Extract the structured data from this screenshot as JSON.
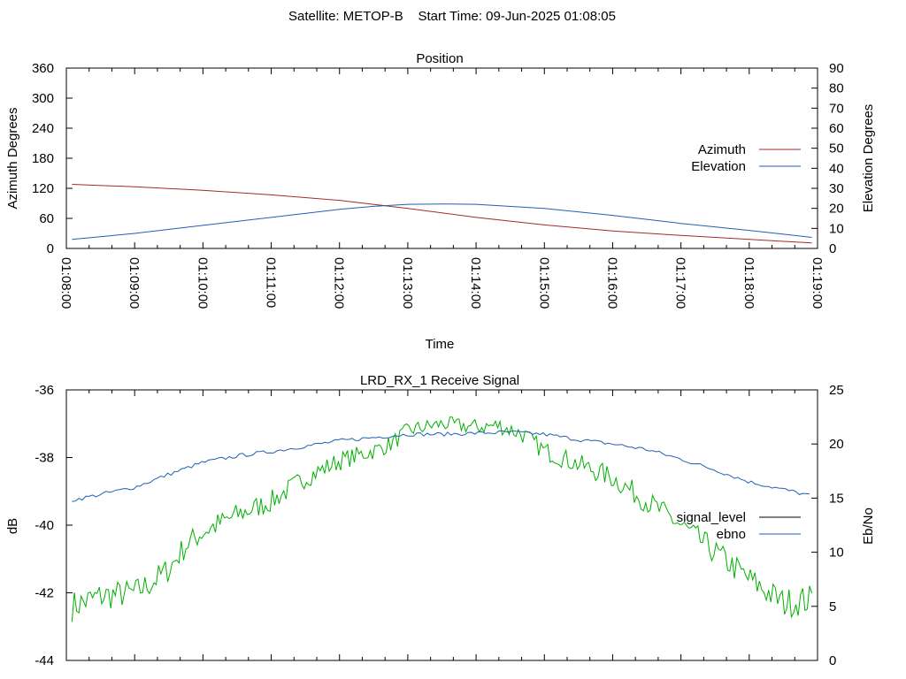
{
  "header": {
    "title": "Satellite: METOP-B    Start Time: 09-Jun-2025 01:08:05"
  },
  "colors": {
    "azimuth": "#a52a2a",
    "elevation": "#2060b0",
    "signal_level": "#00b000",
    "ebno": "#2060b0",
    "signal_level_key": "#000000",
    "axis": "#000000"
  },
  "chart_data": [
    {
      "type": "line",
      "title": "Position",
      "xlabel": "Time",
      "ylabel": "Azimuth Degrees",
      "y2label": "Elevation Degrees",
      "xlim": [
        "01:08:00",
        "01:19:00"
      ],
      "ylim": [
        0,
        360
      ],
      "y2lim": [
        0,
        90
      ],
      "x_ticks": [
        "01:08:00",
        "01:09:00",
        "01:10:00",
        "01:11:00",
        "01:12:00",
        "01:13:00",
        "01:14:00",
        "01:15:00",
        "01:16:00",
        "01:17:00",
        "01:18:00",
        "01:19:00"
      ],
      "y_ticks": [
        "0",
        "60",
        "120",
        "180",
        "240",
        "300",
        "360"
      ],
      "y2_ticks": [
        "0",
        "10",
        "20",
        "30",
        "40",
        "50",
        "60",
        "70",
        "80",
        "90"
      ],
      "legend_position": "right",
      "grid": false,
      "series": [
        {
          "name": "Azimuth",
          "axis": "y",
          "x": [
            "01:08:05",
            "01:09:00",
            "01:10:00",
            "01:11:00",
            "01:12:00",
            "01:13:00",
            "01:14:00",
            "01:15:00",
            "01:16:00",
            "01:17:00",
            "01:18:00",
            "01:18:55"
          ],
          "values": [
            128,
            123,
            116,
            107,
            96,
            80,
            62,
            47,
            35,
            26,
            18,
            11
          ]
        },
        {
          "name": "Elevation",
          "axis": "y2",
          "x": [
            "01:08:05",
            "01:09:00",
            "01:10:00",
            "01:11:00",
            "01:12:00",
            "01:12:30",
            "01:13:00",
            "01:13:30",
            "01:14:00",
            "01:15:00",
            "01:16:00",
            "01:17:00",
            "01:18:00",
            "01:18:55"
          ],
          "values": [
            4.5,
            7.5,
            11.5,
            15.5,
            19.5,
            21,
            22,
            22.2,
            22,
            20,
            16.5,
            12.5,
            9,
            5.5
          ]
        }
      ]
    },
    {
      "type": "line",
      "title": "LRD_RX_1 Receive Signal",
      "ylabel": "dB",
      "y2label": "Eb/No",
      "xlim": [
        "01:08:00",
        "01:19:00"
      ],
      "ylim": [
        -44,
        -36
      ],
      "y2lim": [
        0,
        25
      ],
      "y_ticks": [
        "-44",
        "-42",
        "-40",
        "-38",
        "-36"
      ],
      "y2_ticks": [
        "0",
        "5",
        "10",
        "15",
        "20",
        "25"
      ],
      "legend_position": "right",
      "grid": false,
      "series": [
        {
          "name": "signal_level",
          "axis": "y",
          "x": [
            "01:08:05",
            "01:08:30",
            "01:09:00",
            "01:09:15",
            "01:09:30",
            "01:09:45",
            "01:10:00",
            "01:10:30",
            "01:11:00",
            "01:11:30",
            "01:12:00",
            "01:12:30",
            "01:12:45",
            "01:13:00",
            "01:13:30",
            "01:14:00",
            "01:14:20",
            "01:14:40",
            "01:15:00",
            "01:15:30",
            "01:16:00",
            "01:16:30",
            "01:17:00",
            "01:17:30",
            "01:18:00",
            "01:18:30",
            "01:18:55"
          ],
          "values": [
            -42.4,
            -42.1,
            -42.0,
            -41.7,
            -41.3,
            -40.6,
            -40.2,
            -39.7,
            -39.3,
            -38.6,
            -38.1,
            -37.8,
            -37.6,
            -37.2,
            -37.0,
            -37.1,
            -37.05,
            -37.3,
            -37.8,
            -38.2,
            -38.6,
            -39.3,
            -40.0,
            -40.8,
            -41.6,
            -42.3,
            -42.2
          ]
        },
        {
          "name": "ebno",
          "axis": "y2",
          "x": [
            "01:08:05",
            "01:09:00",
            "01:09:30",
            "01:10:00",
            "01:10:30",
            "01:11:00",
            "01:11:30",
            "01:12:00",
            "01:12:30",
            "01:13:00",
            "01:13:30",
            "01:14:00",
            "01:14:30",
            "01:15:00",
            "01:15:30",
            "01:16:00",
            "01:16:30",
            "01:17:00",
            "01:17:30",
            "01:18:00",
            "01:18:30",
            "01:18:55"
          ],
          "values": [
            14.8,
            16.0,
            17.2,
            18.3,
            18.9,
            19.3,
            19.8,
            20.3,
            20.6,
            20.9,
            20.9,
            21.0,
            21.1,
            20.9,
            20.4,
            20.0,
            19.5,
            18.6,
            17.6,
            16.5,
            15.8,
            15.2
          ]
        }
      ]
    }
  ]
}
